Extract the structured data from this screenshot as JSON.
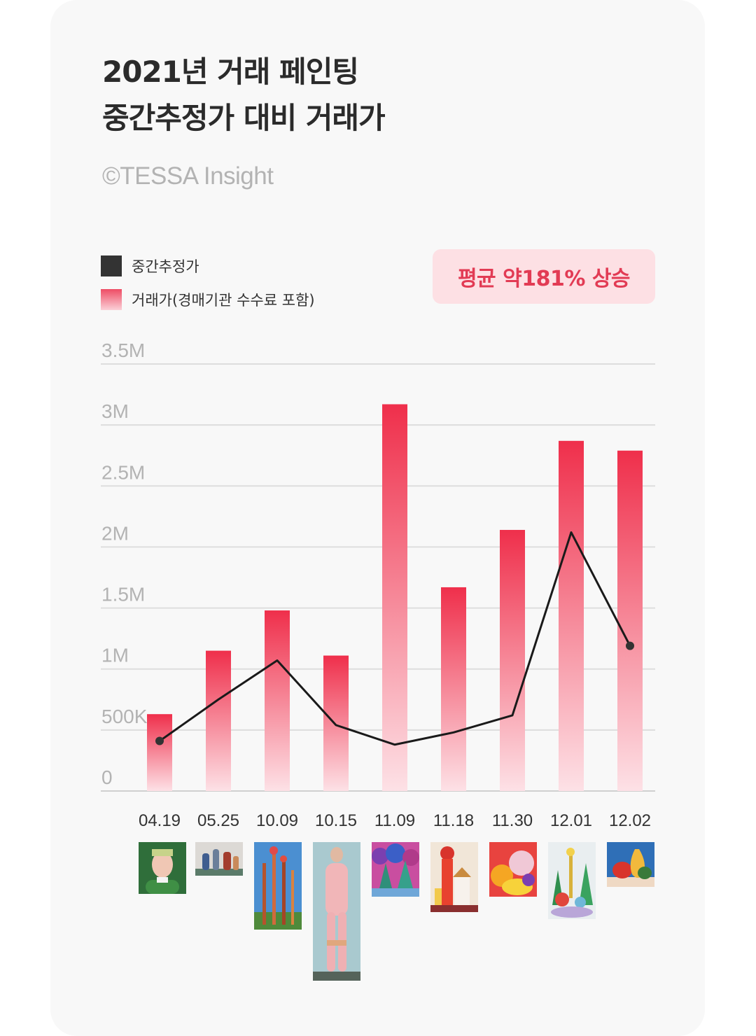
{
  "title": {
    "line1": "2021년 거래 페인팅",
    "line2": "중간추정가 대비 거래가"
  },
  "source": "©TESSA Insight",
  "badge": "평균 약181% 상승",
  "legend": {
    "estimate": "중간추정가",
    "price": "거래가(경매기관 수수료 포함)"
  },
  "colors": {
    "bar_top": "#ef2f4b",
    "bar_bottom": "#fde1e6",
    "line": "#1a1a1a",
    "grid": "#dddddd"
  },
  "chart_data": {
    "type": "bar",
    "title": "2021년 거래 페인팅 중간추정가 대비 거래가",
    "categories": [
      "04.19",
      "05.25",
      "10.09",
      "10.15",
      "11.09",
      "11.18",
      "11.30",
      "12.01",
      "12.02"
    ],
    "ylim": [
      0,
      3500000
    ],
    "y_ticks": [
      0,
      500000,
      1000000,
      1500000,
      2000000,
      2500000,
      3000000,
      3500000
    ],
    "y_tick_labels": [
      "0",
      "500K",
      "1M",
      "1.5M",
      "2M",
      "2.5M",
      "3M",
      "3.5M"
    ],
    "grid": true,
    "legend_position": "top-left",
    "series": [
      {
        "name": "거래가(경매기관 수수료 포함)",
        "kind": "bar",
        "values": [
          630000,
          1150000,
          1480000,
          1110000,
          3170000,
          1670000,
          2140000,
          2870000,
          2790000
        ]
      },
      {
        "name": "중간추정가",
        "kind": "line",
        "values": [
          410000,
          750000,
          1070000,
          540000,
          380000,
          480000,
          620000,
          2120000,
          1190000
        ]
      }
    ]
  },
  "artworks": [
    {
      "name": "portrait"
    },
    {
      "name": "vases"
    },
    {
      "name": "trees"
    },
    {
      "name": "figure"
    },
    {
      "name": "forest"
    },
    {
      "name": "tower"
    },
    {
      "name": "fruits"
    },
    {
      "name": "garden"
    },
    {
      "name": "pear"
    }
  ]
}
